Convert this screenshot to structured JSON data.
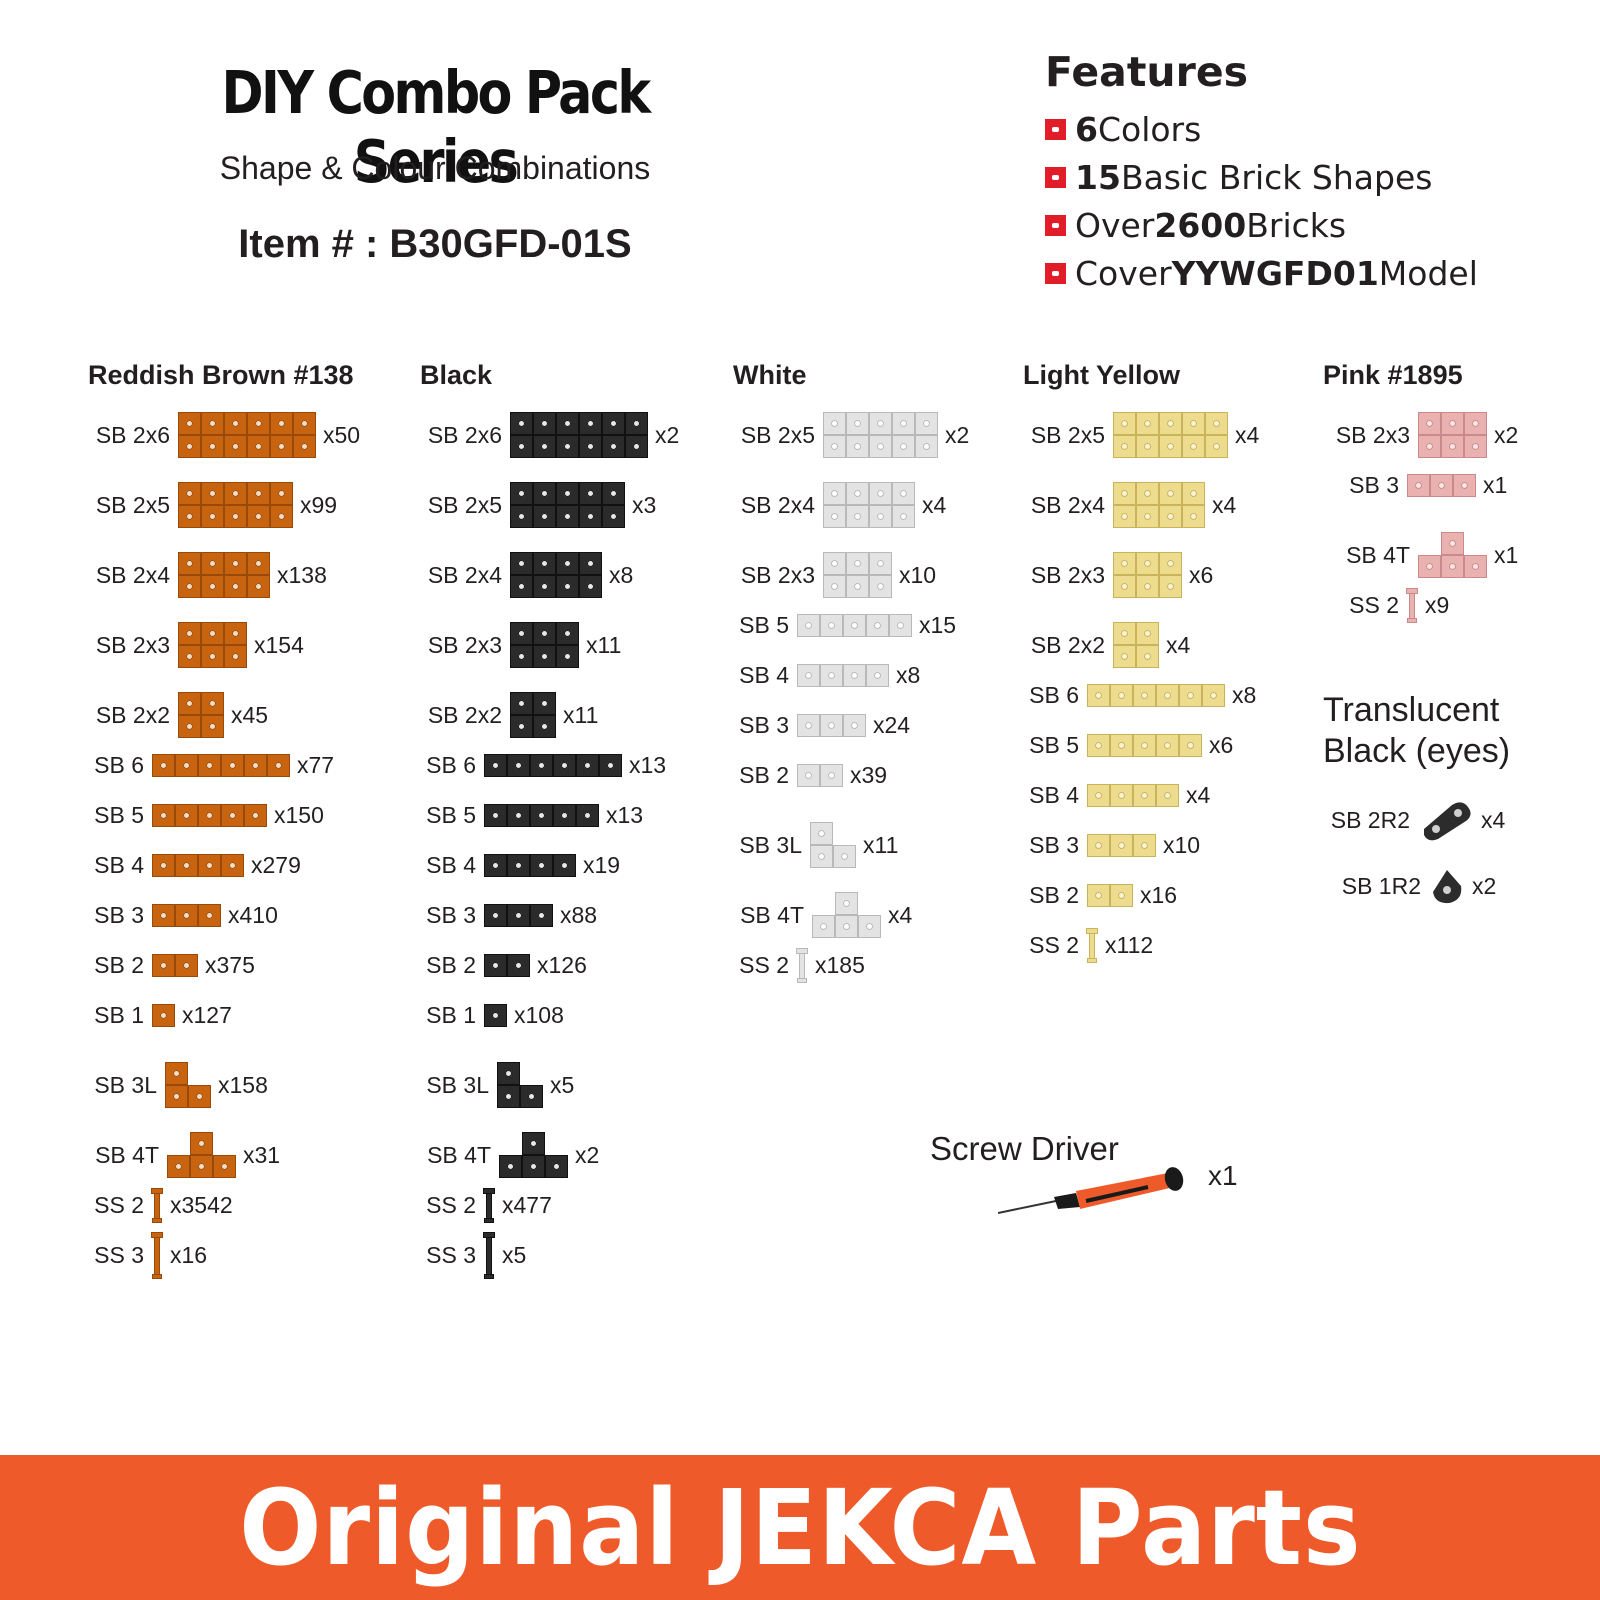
{
  "header": {
    "title": "DIY Combo Pack Series",
    "subtitle": "Shape & Colour Combinations",
    "item": "Item # : B30GFD-01S"
  },
  "features": {
    "title": "Features",
    "items": [
      {
        "bold": "6",
        "text": " Colors"
      },
      {
        "bold": "15",
        "text": " Basic Brick Shapes"
      },
      {
        "pre": "Over ",
        "bold": "2600",
        "text": " Bricks"
      },
      {
        "pre": "Cover ",
        "bold": "YYWGFD01",
        "text": " Model"
      }
    ],
    "bullet_color": "#e11d2a"
  },
  "columns": [
    {
      "name": "Reddish Brown #138",
      "color": "#c8640f",
      "border": "#9a4a08",
      "hole": "#f4ddc4",
      "parts": [
        {
          "label": "SB 2x6",
          "shape": "2x6",
          "qty": "x50"
        },
        {
          "label": "SB 2x5",
          "shape": "2x5",
          "qty": "x99"
        },
        {
          "label": "SB 2x4",
          "shape": "2x4",
          "qty": "x138"
        },
        {
          "label": "SB 2x3",
          "shape": "2x3",
          "qty": "x154"
        },
        {
          "label": "SB 2x2",
          "shape": "2x2",
          "qty": "x45"
        },
        {
          "label": "SB 6",
          "shape": "6",
          "qty": "x77"
        },
        {
          "label": "SB 5",
          "shape": "5",
          "qty": "x150"
        },
        {
          "label": "SB 4",
          "shape": "4",
          "qty": "x279"
        },
        {
          "label": "SB 3",
          "shape": "3",
          "qty": "x410"
        },
        {
          "label": "SB 2",
          "shape": "2",
          "qty": "x375"
        },
        {
          "label": "SB 1",
          "shape": "1",
          "qty": "x127"
        },
        {
          "label": "SB 3L",
          "shape": "3L",
          "qty": "x158"
        },
        {
          "label": "SB 4T",
          "shape": "4T",
          "qty": "x31"
        },
        {
          "label": "SS 2",
          "shape": "ss2",
          "qty": "x3542"
        },
        {
          "label": "SS 3",
          "shape": "ss3",
          "qty": "x16"
        }
      ]
    },
    {
      "name": "Black",
      "color": "#2b2b2b",
      "border": "#111111",
      "hole": "#e8e8e8",
      "parts": [
        {
          "label": "SB 2x6",
          "shape": "2x6",
          "qty": "x2"
        },
        {
          "label": "SB 2x5",
          "shape": "2x5",
          "qty": "x3"
        },
        {
          "label": "SB 2x4",
          "shape": "2x4",
          "qty": "x8"
        },
        {
          "label": "SB 2x3",
          "shape": "2x3",
          "qty": "x11"
        },
        {
          "label": "SB 2x2",
          "shape": "2x2",
          "qty": "x11"
        },
        {
          "label": "SB 6",
          "shape": "6",
          "qty": "x13"
        },
        {
          "label": "SB 5",
          "shape": "5",
          "qty": "x13"
        },
        {
          "label": "SB 4",
          "shape": "4",
          "qty": "x19"
        },
        {
          "label": "SB 3",
          "shape": "3",
          "qty": "x88"
        },
        {
          "label": "SB 2",
          "shape": "2",
          "qty": "x126"
        },
        {
          "label": "SB 1",
          "shape": "1",
          "qty": "x108"
        },
        {
          "label": "SB 3L",
          "shape": "3L",
          "qty": "x5"
        },
        {
          "label": "SB 4T",
          "shape": "4T",
          "qty": "x2"
        },
        {
          "label": "SS 2",
          "shape": "ss2",
          "qty": "x477"
        },
        {
          "label": "SS 3",
          "shape": "ss3",
          "qty": "x5"
        }
      ]
    },
    {
      "name": "White",
      "color": "#e3e3e3",
      "border": "#b9b9b9",
      "hole": "#ffffff",
      "parts": [
        {
          "label": "SB 2x5",
          "shape": "2x5",
          "qty": "x2"
        },
        {
          "label": "SB 2x4",
          "shape": "2x4",
          "qty": "x4"
        },
        {
          "label": "SB 2x3",
          "shape": "2x3",
          "qty": "x10"
        },
        {
          "label": "SB 5",
          "shape": "5",
          "qty": "x15"
        },
        {
          "label": "SB 4",
          "shape": "4",
          "qty": "x8"
        },
        {
          "label": "SB 3",
          "shape": "3",
          "qty": "x24"
        },
        {
          "label": "SB 2",
          "shape": "2",
          "qty": "x39"
        },
        {
          "label": "SB 3L",
          "shape": "3L",
          "qty": "x11"
        },
        {
          "label": "SB 4T",
          "shape": "4T",
          "qty": "x4"
        },
        {
          "label": "SS 2",
          "shape": "ss2",
          "qty": "x185"
        }
      ]
    },
    {
      "name": "Light Yellow",
      "color": "#eddc8e",
      "border": "#c9b45c",
      "hole": "#fbf4d4",
      "parts": [
        {
          "label": "SB 2x5",
          "shape": "2x5",
          "qty": "x4"
        },
        {
          "label": "SB 2x4",
          "shape": "2x4",
          "qty": "x4"
        },
        {
          "label": "SB 2x3",
          "shape": "2x3",
          "qty": "x6"
        },
        {
          "label": "SB 2x2",
          "shape": "2x2",
          "qty": "x4"
        },
        {
          "label": "SB 6",
          "shape": "6",
          "qty": "x8"
        },
        {
          "label": "SB 5",
          "shape": "5",
          "qty": "x6"
        },
        {
          "label": "SB 4",
          "shape": "4",
          "qty": "x4"
        },
        {
          "label": "SB 3",
          "shape": "3",
          "qty": "x10"
        },
        {
          "label": "SB 2",
          "shape": "2",
          "qty": "x16"
        },
        {
          "label": "SS 2",
          "shape": "ss2",
          "qty": "x112"
        }
      ]
    },
    {
      "name": "Pink #1895",
      "color": "#e9b1b0",
      "border": "#c98a89",
      "hole": "#fbe6e6",
      "parts": [
        {
          "label": "SB 2x3",
          "shape": "2x3",
          "qty": "x2"
        },
        {
          "label": "SB 3",
          "shape": "3",
          "qty": "x1"
        },
        {
          "label": "SB 4T",
          "shape": "4T",
          "qty": "x1"
        },
        {
          "label": "SS 2",
          "shape": "ss2",
          "qty": "x9"
        }
      ]
    }
  ],
  "translucent": {
    "title_line1": "Translucent",
    "title_line2": "Black (eyes)",
    "color": "#2c2c2c",
    "parts": [
      {
        "label": "SB 2R2",
        "qty": "x4"
      },
      {
        "label": "SB 1R2",
        "qty": "x2"
      }
    ]
  },
  "screwdriver": {
    "label": "Screw Driver",
    "qty": "x1",
    "icon": "screwdriver-icon",
    "color": "#ef5a2a"
  },
  "banner": {
    "text": "Original JEKCA Parts",
    "color": "#ef5a2a"
  }
}
